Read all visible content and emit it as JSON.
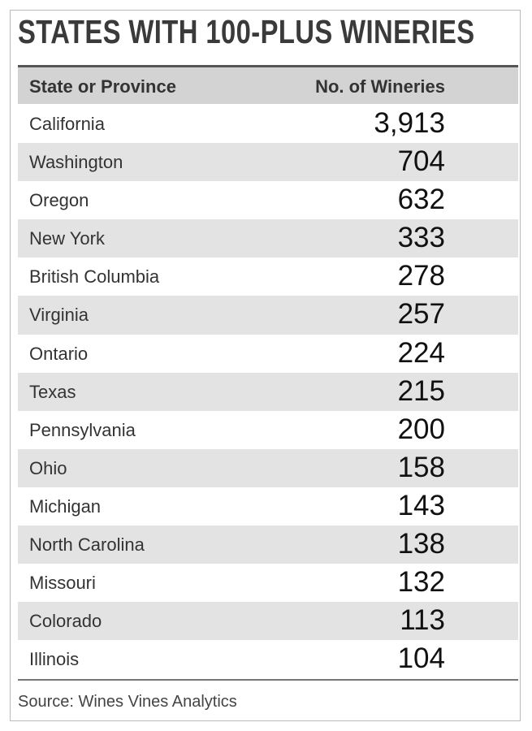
{
  "header": {
    "title": "STATES WITH 100-PLUS WINERIES"
  },
  "table": {
    "columns": [
      "State or Province",
      "No. of Wineries"
    ],
    "rows": [
      [
        "California",
        "3,913"
      ],
      [
        "Washington",
        "704"
      ],
      [
        "Oregon",
        "632"
      ],
      [
        "New York",
        "333"
      ],
      [
        "British Columbia",
        "278"
      ],
      [
        "Virginia",
        "257"
      ],
      [
        "Ontario",
        "224"
      ],
      [
        "Texas",
        "215"
      ],
      [
        "Pennsylvania",
        "200"
      ],
      [
        "Ohio",
        "158"
      ],
      [
        "Michigan",
        "143"
      ],
      [
        "North Carolina",
        "138"
      ],
      [
        "Missouri",
        "132"
      ],
      [
        "Colorado",
        "113"
      ],
      [
        "Illinois",
        "104"
      ]
    ]
  },
  "footer": {
    "source": "Source: Wines Vines Analytics"
  }
}
